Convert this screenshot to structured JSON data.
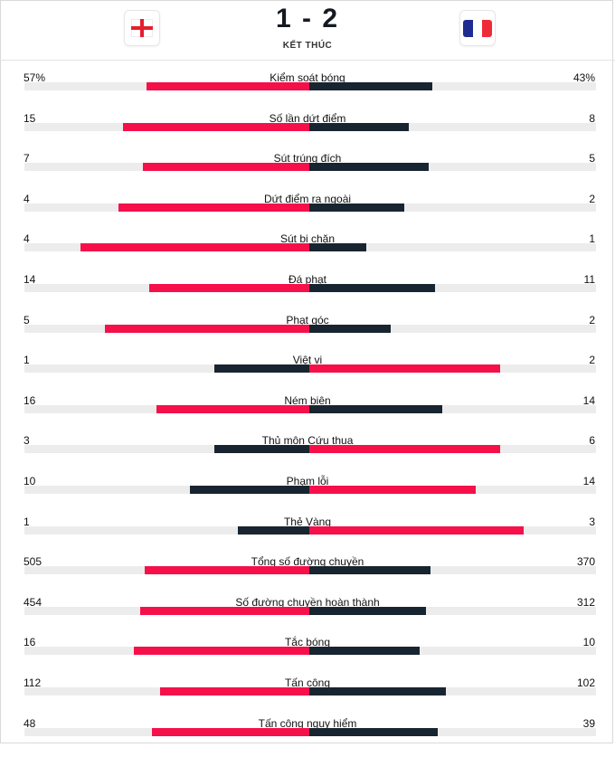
{
  "match": {
    "score": "1 - 2",
    "status": "KẾT THÚC",
    "home_flag_icon": "england-flag-icon",
    "away_flag_icon": "france-flag-icon"
  },
  "colors": {
    "leading": "#f5104a",
    "trailing": "#182530",
    "track": "#ececec"
  },
  "stats": [
    {
      "label": "Kiểm soát bóng",
      "home": "57%",
      "away": "43%",
      "home_value": 57,
      "away_value": 43
    },
    {
      "label": "Số lần dứt điểm",
      "home": "15",
      "away": "8",
      "home_value": 15,
      "away_value": 8
    },
    {
      "label": "Sút trúng đích",
      "home": "7",
      "away": "5",
      "home_value": 7,
      "away_value": 5
    },
    {
      "label": "Dứt điểm ra ngoài",
      "home": "4",
      "away": "2",
      "home_value": 4,
      "away_value": 2
    },
    {
      "label": "Sút bị chặn",
      "home": "4",
      "away": "1",
      "home_value": 4,
      "away_value": 1
    },
    {
      "label": "Đá phạt",
      "home": "14",
      "away": "11",
      "home_value": 14,
      "away_value": 11
    },
    {
      "label": "Phạt góc",
      "home": "5",
      "away": "2",
      "home_value": 5,
      "away_value": 2
    },
    {
      "label": "Việt vị",
      "home": "1",
      "away": "2",
      "home_value": 1,
      "away_value": 2
    },
    {
      "label": "Ném biên",
      "home": "16",
      "away": "14",
      "home_value": 16,
      "away_value": 14
    },
    {
      "label": "Thủ môn Cứu thua",
      "home": "3",
      "away": "6",
      "home_value": 3,
      "away_value": 6
    },
    {
      "label": "Phạm lỗi",
      "home": "10",
      "away": "14",
      "home_value": 10,
      "away_value": 14
    },
    {
      "label": "Thẻ Vàng",
      "home": "1",
      "away": "3",
      "home_value": 1,
      "away_value": 3
    },
    {
      "label": "Tổng số đường chuyền",
      "home": "505",
      "away": "370",
      "home_value": 505,
      "away_value": 370
    },
    {
      "label": "Số đường chuyền hoàn thành",
      "home": "454",
      "away": "312",
      "home_value": 454,
      "away_value": 312
    },
    {
      "label": "Tắc bóng",
      "home": "16",
      "away": "10",
      "home_value": 16,
      "away_value": 10
    },
    {
      "label": "Tấn công",
      "home": "112",
      "away": "102",
      "home_value": 112,
      "away_value": 102
    },
    {
      "label": "Tấn công nguy hiểm",
      "home": "48",
      "away": "39",
      "home_value": 48,
      "away_value": 39
    }
  ]
}
